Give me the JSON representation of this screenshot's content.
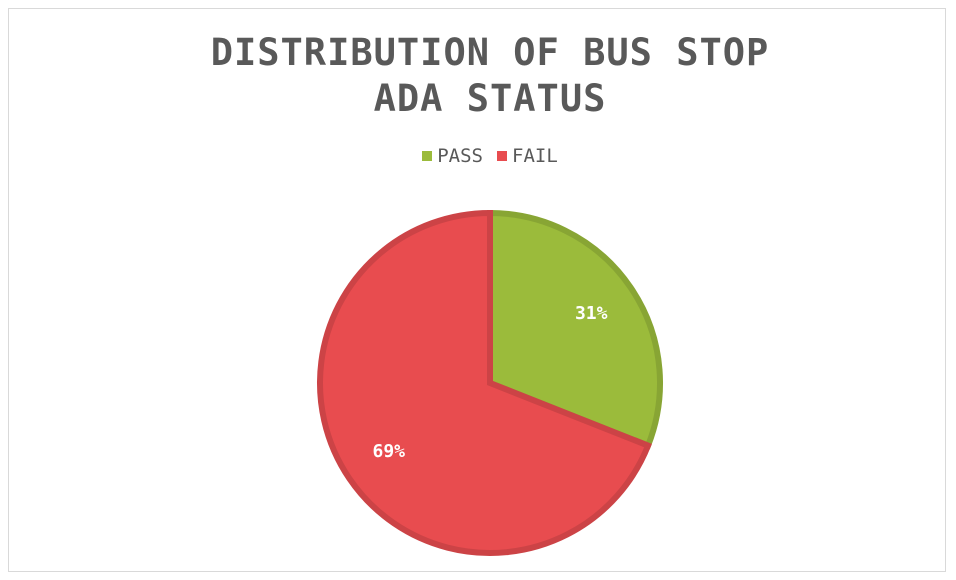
{
  "chart_data": {
    "type": "pie",
    "title": "DISTRIBUTION OF BUS STOP ADA STATUS",
    "categories": [
      "PASS",
      "FAIL"
    ],
    "values": [
      31,
      69
    ],
    "value_labels": [
      "31%",
      "69%"
    ],
    "colors": [
      "#9bbb3b",
      "#e84c4f"
    ],
    "legend": "top"
  }
}
